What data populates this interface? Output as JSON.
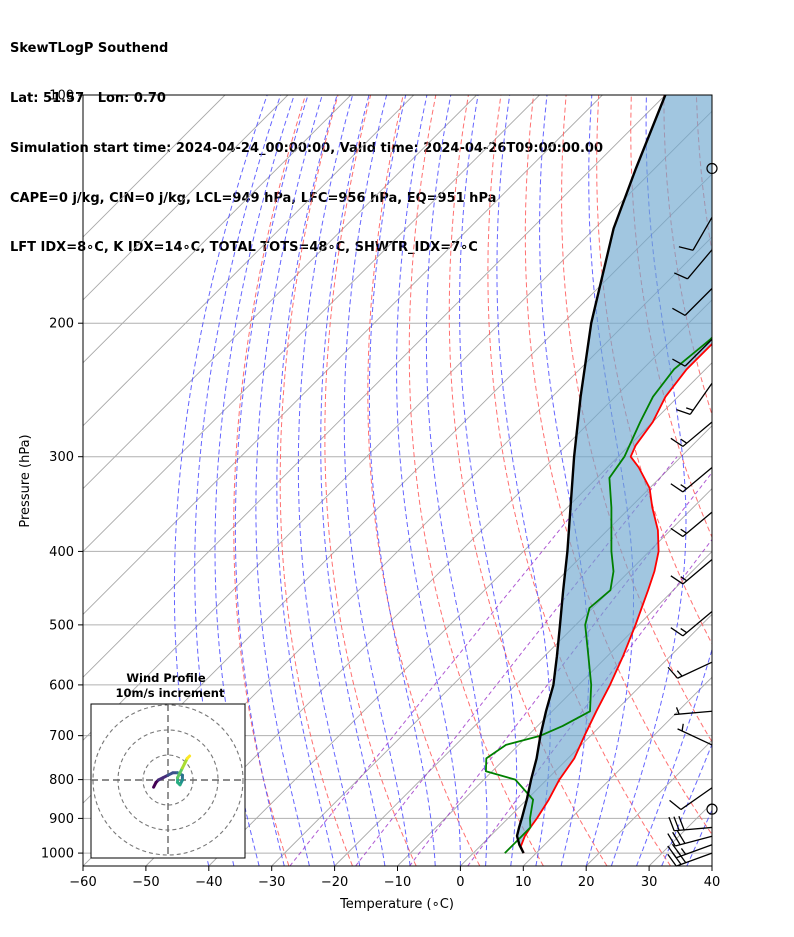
{
  "header": {
    "line1": "SkewTLogP Southend",
    "line2": "Lat: 51.57   Lon: 0.70",
    "line3": "Simulation start time: 2024-04-24_00:00:00, Valid time: 2024-04-26T09:00:00.00",
    "line4": "CAPE=0 j/kg, CIN=0 j/kg, LCL=949 hPa, LFC=956 hPa, EQ=951 hPa",
    "line5": "LFT IDX=8∘C, K IDX=14∘C, TOTAL TOTS=48∘C, SHWTR_IDX=7∘C"
  },
  "chart_data": {
    "type": "line",
    "xlabel": "Temperature (∘C)",
    "ylabel": "Pressure (hPa)",
    "xlim": [
      -60,
      40
    ],
    "ylim": [
      1040,
      100
    ],
    "y_scale": "log",
    "skew": true,
    "x_ticks": [
      -60,
      -50,
      -40,
      -30,
      -20,
      -10,
      0,
      10,
      20,
      30,
      40
    ],
    "x_tick_labels": [
      "−60",
      "−50",
      "−40",
      "−30",
      "−20",
      "−10",
      "0",
      "10",
      "20",
      "30",
      "40"
    ],
    "y_ticks": [
      1000,
      900,
      800,
      700,
      600,
      500,
      400,
      300,
      200,
      100
    ],
    "grid": true,
    "colors": {
      "temperature": "#ff0000",
      "dewpoint": "#008000",
      "parcel": "#000000",
      "cape_fill": "#6fa8d0",
      "dry_adiabats": "#ff5a5a",
      "moist_adiabats": "#3c3cff",
      "mixing_ratio": "#9b30c8"
    },
    "series": [
      {
        "name": "",
        "key": "temperature",
        "points": [
          [
            1000,
            8
          ],
          [
            980,
            6.5
          ],
          [
            950,
            5.5
          ],
          [
            925,
            5
          ],
          [
            900,
            4.6
          ],
          [
            850,
            3.5
          ],
          [
            800,
            2
          ],
          [
            750,
            1
          ],
          [
            700,
            -1
          ],
          [
            650,
            -3
          ],
          [
            600,
            -5
          ],
          [
            550,
            -7.5
          ],
          [
            500,
            -10.5
          ],
          [
            450,
            -14
          ],
          [
            425,
            -16
          ],
          [
            400,
            -18.5
          ],
          [
            375,
            -22
          ],
          [
            350,
            -26.5
          ],
          [
            330,
            -30
          ],
          [
            310,
            -35
          ],
          [
            300,
            -38
          ],
          [
            290,
            -39
          ],
          [
            270,
            -40
          ],
          [
            250,
            -42
          ],
          [
            230,
            -43
          ],
          [
            210,
            -43
          ],
          [
            200,
            -43
          ],
          [
            180,
            -43
          ],
          [
            170,
            -43
          ],
          [
            160,
            -43
          ],
          [
            150,
            -44
          ],
          [
            140,
            -45
          ],
          [
            130,
            -45
          ],
          [
            120,
            -45
          ],
          [
            110,
            -45
          ],
          [
            100,
            -45
          ]
        ]
      },
      {
        "name": "",
        "key": "dewpoint",
        "points": [
          [
            1000,
            5
          ],
          [
            950,
            5
          ],
          [
            925,
            5
          ],
          [
            900,
            3.5
          ],
          [
            850,
            1
          ],
          [
            800,
            -5
          ],
          [
            780,
            -11
          ],
          [
            750,
            -13
          ],
          [
            720,
            -12
          ],
          [
            700,
            -8
          ],
          [
            680,
            -6
          ],
          [
            650,
            -4
          ],
          [
            600,
            -8
          ],
          [
            550,
            -13
          ],
          [
            500,
            -18.5
          ],
          [
            475,
            -20.5
          ],
          [
            450,
            -20
          ],
          [
            425,
            -22.5
          ],
          [
            400,
            -26
          ],
          [
            350,
            -33
          ],
          [
            320,
            -38
          ],
          [
            300,
            -39
          ],
          [
            270,
            -42
          ],
          [
            250,
            -44
          ],
          [
            230,
            -45
          ],
          [
            210,
            -44
          ],
          [
            200,
            -44
          ],
          [
            190,
            -45
          ],
          [
            180,
            -47
          ],
          [
            170,
            -51
          ],
          [
            150,
            -51.5
          ],
          [
            130,
            -52.5
          ],
          [
            115,
            -54
          ],
          [
            100,
            -55
          ]
        ]
      },
      {
        "name": "",
        "key": "parcel",
        "points": [
          [
            1000,
            8
          ],
          [
            975,
            6
          ],
          [
            949,
            4.2
          ],
          [
            925,
            3.2
          ],
          [
            900,
            2.2
          ],
          [
            850,
            0
          ],
          [
            800,
            -2.5
          ],
          [
            750,
            -5
          ],
          [
            700,
            -8
          ],
          [
            650,
            -11
          ],
          [
            600,
            -14
          ],
          [
            550,
            -18
          ],
          [
            500,
            -22.5
          ],
          [
            450,
            -27.5
          ],
          [
            400,
            -33
          ],
          [
            350,
            -39.5
          ],
          [
            300,
            -47
          ],
          [
            250,
            -55.5
          ],
          [
            200,
            -65.5
          ],
          [
            150,
            -77
          ],
          [
            125,
            -83
          ],
          [
            100,
            -90
          ]
        ]
      }
    ],
    "wind_barbs": [
      {
        "p": 1000,
        "dir": 250,
        "kt": 30
      },
      {
        "p": 975,
        "dir": 250,
        "kt": 25
      },
      {
        "p": 950,
        "dir": 255,
        "kt": 30
      },
      {
        "p": 925,
        "dir": 265,
        "kt": 30
      },
      {
        "p": 875,
        "calm": true
      },
      {
        "p": 820,
        "dir": 235,
        "kt": 10
      },
      {
        "p": 720,
        "dir": 295,
        "kt": 5
      },
      {
        "p": 650,
        "dir": 265,
        "kt": 5
      },
      {
        "p": 560,
        "dir": 245,
        "kt": 15
      },
      {
        "p": 480,
        "dir": 230,
        "kt": 15
      },
      {
        "p": 410,
        "dir": 230,
        "kt": 15
      },
      {
        "p": 355,
        "dir": 230,
        "kt": 15
      },
      {
        "p": 310,
        "dir": 230,
        "kt": 15
      },
      {
        "p": 270,
        "dir": 230,
        "kt": 15
      },
      {
        "p": 240,
        "dir": 215,
        "kt": 15
      },
      {
        "p": 210,
        "dir": 225,
        "kt": 10
      },
      {
        "p": 180,
        "dir": 225,
        "kt": 10
      },
      {
        "p": 160,
        "dir": 220,
        "kt": 10
      },
      {
        "p": 145,
        "dir": 210,
        "kt": 10
      },
      {
        "p": 125,
        "calm": true
      }
    ],
    "inset": {
      "title": "Wind Profile",
      "subtitle": "10m/s increment",
      "rings": 3,
      "hodograph": [
        [
          -3,
          -1.5
        ],
        [
          -2.5,
          -0.5
        ],
        [
          -2,
          0
        ],
        [
          -1,
          0.5
        ],
        [
          0,
          1
        ],
        [
          1,
          1.5
        ],
        [
          2,
          1.5
        ],
        [
          3,
          1
        ],
        [
          3,
          0
        ],
        [
          2.5,
          -1
        ],
        [
          2,
          -0.5
        ],
        [
          2,
          0.5
        ],
        [
          2.5,
          1.5
        ],
        [
          3,
          2.5
        ],
        [
          3.5,
          3.5
        ],
        [
          4,
          4.5
        ],
        [
          4.5,
          5
        ]
      ]
    }
  }
}
